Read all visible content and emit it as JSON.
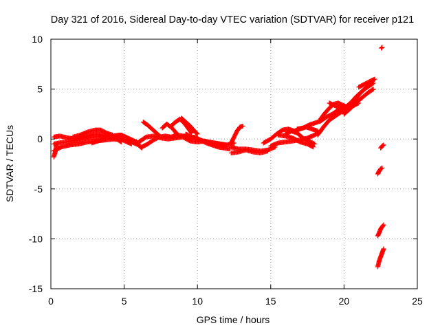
{
  "chart_data": {
    "type": "scatter",
    "title": "Day 321 of 2016, Sidereal Day-to-day VTEC variation (SDTVAR) for receiver p121",
    "xlabel": "GPS time / hours",
    "ylabel": "SDTVAR / TECUs",
    "xlim": [
      0,
      25
    ],
    "ylim": [
      -15,
      10
    ],
    "x_ticks": [
      0,
      5,
      10,
      15,
      20,
      25
    ],
    "y_ticks": [
      -15,
      -10,
      -5,
      0,
      5,
      10
    ],
    "x_tick_labels": [
      "0",
      "5",
      "10",
      "15",
      "20",
      "25"
    ],
    "y_tick_labels": [
      "-15",
      "-10",
      "-5",
      "0",
      "5",
      "10"
    ],
    "grid": true,
    "marker": "+",
    "color": "#ff0000",
    "series": [
      {
        "name": "SDTVAR",
        "tracks": [
          {
            "x": [
              0.2,
              0.5,
              1.0,
              1.5,
              2.0,
              2.5,
              3.0,
              3.5,
              4.0,
              4.5,
              5.0,
              5.5,
              6.0
            ],
            "y": [
              -0.5,
              -0.4,
              -0.3,
              -0.2,
              -0.1,
              0.1,
              0.2,
              0.2,
              0.1,
              0.0,
              0.1,
              -0.3,
              -0.6
            ]
          },
          {
            "x": [
              0.2,
              0.6,
              1.2,
              1.8,
              2.4,
              3.0,
              3.6,
              4.2,
              4.8,
              5.4,
              6.0
            ],
            "y": [
              0.2,
              0.3,
              0.1,
              0.0,
              0.3,
              0.5,
              0.4,
              0.3,
              0.4,
              0.0,
              -0.4
            ]
          },
          {
            "x": [
              0.2,
              0.7,
              1.3,
              1.9,
              2.5,
              3.1,
              3.7,
              4.3,
              4.9,
              5.5
            ],
            "y": [
              -1.2,
              -0.8,
              -0.6,
              -0.5,
              -0.3,
              -0.2,
              -0.1,
              0.0,
              -0.1,
              -0.5
            ]
          },
          {
            "x": [
              0.2,
              0.3,
              0.4
            ],
            "y": [
              -1.8,
              -1.3,
              -0.6
            ]
          },
          {
            "x": [
              1.5,
              2.0,
              2.5,
              3.0,
              3.4,
              3.8,
              4.2
            ],
            "y": [
              0.2,
              0.4,
              0.7,
              0.9,
              0.9,
              0.6,
              0.4
            ]
          },
          {
            "x": [
              2.8,
              3.2,
              3.6,
              4.0,
              4.4,
              4.8
            ],
            "y": [
              -0.4,
              -0.2,
              0.0,
              0.2,
              0.1,
              -0.3
            ]
          },
          {
            "x": [
              4.3,
              4.7,
              5.1,
              5.5,
              5.9,
              6.2
            ],
            "y": [
              0.3,
              0.4,
              0.2,
              -0.2,
              -0.5,
              -0.9
            ]
          },
          {
            "x": [
              6.0,
              6.5,
              7.0,
              7.5,
              8.0,
              8.5,
              9.0,
              9.5,
              10.0,
              10.5,
              11.0,
              11.5,
              12.0,
              12.5
            ],
            "y": [
              -0.3,
              0.2,
              0.3,
              0.1,
              0.0,
              0.1,
              0.2,
              -0.2,
              -0.3,
              -0.2,
              -0.4,
              -0.5,
              -0.6,
              -0.4
            ]
          },
          {
            "x": [
              6.2,
              6.6,
              7.0,
              7.4,
              7.8,
              8.2,
              8.6,
              9.0,
              9.4,
              9.8,
              10.2,
              10.6,
              11.0,
              11.4,
              11.8,
              12.2
            ],
            "y": [
              -0.8,
              -0.5,
              -0.1,
              0.2,
              0.3,
              0.2,
              0.4,
              0.3,
              0.1,
              0.2,
              -0.1,
              -0.4,
              -0.6,
              -0.8,
              -0.9,
              -1.0
            ]
          },
          {
            "x": [
              6.3,
              6.6,
              6.9,
              7.2,
              7.5
            ],
            "y": [
              1.7,
              1.4,
              1.0,
              0.6,
              0.2
            ]
          },
          {
            "x": [
              7.6,
              7.9,
              8.2,
              8.5,
              8.7
            ],
            "y": [
              1.1,
              1.5,
              1.2,
              0.7,
              0.3
            ]
          },
          {
            "x": [
              8.2,
              8.5,
              8.8,
              9.1,
              9.4,
              9.6
            ],
            "y": [
              1.3,
              1.7,
              2.0,
              1.6,
              1.0,
              0.6
            ]
          },
          {
            "x": [
              8.9,
              9.2,
              9.5,
              9.8,
              10.0
            ],
            "y": [
              2.1,
              1.7,
              1.3,
              0.8,
              0.5
            ]
          },
          {
            "x": [
              9.2,
              9.6,
              10.0,
              10.4,
              10.8,
              11.2,
              11.6,
              12.0
            ],
            "y": [
              0.5,
              0.2,
              0.0,
              -0.2,
              -0.3,
              -0.4,
              -0.5,
              -0.6
            ]
          },
          {
            "x": [
              12.3,
              12.8,
              13.3,
              13.8,
              14.3,
              14.8,
              15.3
            ],
            "y": [
              -0.8,
              -1.0,
              -1.0,
              -1.1,
              -1.2,
              -1.1,
              -0.8
            ]
          },
          {
            "x": [
              12.3,
              12.8,
              13.3,
              13.8,
              14.3,
              14.8
            ],
            "y": [
              -1.4,
              -1.3,
              -1.1,
              -1.3,
              -1.4,
              -1.2
            ]
          },
          {
            "x": [
              12.3,
              12.5,
              12.7,
              12.9,
              13.1
            ],
            "y": [
              -0.4,
              0.2,
              0.8,
              1.2,
              1.3
            ]
          },
          {
            "x": [
              14.5,
              15.0,
              15.4,
              15.8,
              16.2,
              16.6,
              17.0,
              17.4,
              17.8,
              18.2
            ],
            "y": [
              -0.4,
              0.0,
              0.5,
              0.9,
              1.0,
              0.8,
              1.0,
              1.2,
              1.0,
              0.8
            ]
          },
          {
            "x": [
              15.0,
              15.5,
              16.0,
              16.5,
              17.0,
              17.5,
              18.0,
              18.4
            ],
            "y": [
              -0.7,
              -0.4,
              -0.3,
              -0.2,
              -0.1,
              0.1,
              0.4,
              0.8
            ]
          },
          {
            "x": [
              15.5,
              16.0,
              16.5,
              17.0,
              17.5,
              17.9
            ],
            "y": [
              0.4,
              0.3,
              0.1,
              -0.3,
              -0.5,
              -0.8
            ]
          },
          {
            "x": [
              16.0,
              16.4,
              16.8,
              17.2,
              17.6,
              18.0
            ],
            "y": [
              0.5,
              0.8,
              0.6,
              0.1,
              -0.2,
              -0.5
            ]
          },
          {
            "x": [
              16.8,
              17.2,
              17.6,
              18.0,
              18.4,
              18.8,
              19.2,
              19.6,
              20.0
            ],
            "y": [
              1.0,
              1.1,
              1.4,
              1.6,
              1.8,
              2.2,
              2.5,
              2.9,
              3.2
            ]
          },
          {
            "x": [
              18.2,
              18.6,
              19.0,
              19.4,
              19.8,
              20.2,
              20.6,
              21.0
            ],
            "y": [
              0.4,
              1.2,
              1.9,
              2.3,
              2.7,
              3.0,
              3.3,
              3.6
            ]
          },
          {
            "x": [
              18.4,
              18.7,
              19.0,
              19.3,
              19.6,
              19.9,
              20.2,
              20.5,
              20.8,
              21.1,
              21.4,
              21.7,
              22.0
            ],
            "y": [
              2.0,
              2.6,
              3.1,
              3.5,
              3.6,
              3.4,
              3.2,
              3.5,
              4.0,
              4.6,
              5.0,
              5.3,
              5.6
            ]
          },
          {
            "x": [
              19.0,
              19.3,
              19.6,
              19.9,
              20.2,
              20.5,
              20.8,
              21.1,
              21.4,
              21.7,
              22.0
            ],
            "y": [
              3.6,
              3.4,
              3.2,
              3.1,
              3.3,
              3.7,
              4.2,
              4.6,
              5.0,
              5.4,
              5.9
            ]
          },
          {
            "x": [
              20.0,
              20.4,
              20.8,
              21.2,
              21.6,
              22.0
            ],
            "y": [
              2.5,
              3.0,
              3.6,
              4.1,
              4.6,
              5.0
            ]
          },
          {
            "x": [
              21.0,
              21.4,
              21.8,
              22.1
            ],
            "y": [
              5.2,
              5.5,
              5.8,
              6.0
            ]
          },
          {
            "x": [
              22.5,
              22.6,
              22.7
            ],
            "y": [
              -0.9,
              -0.7,
              -0.6
            ]
          },
          {
            "x": [
              22.3,
              22.4,
              22.5,
              22.6
            ],
            "y": [
              -3.5,
              -3.2,
              -3.0,
              -2.9
            ]
          },
          {
            "x": [
              22.3,
              22.4,
              22.5,
              22.6,
              22.7
            ],
            "y": [
              -9.7,
              -9.4,
              -9.0,
              -8.8,
              -8.6
            ]
          },
          {
            "x": [
              22.3,
              22.4,
              22.5,
              22.6,
              22.7
            ],
            "y": [
              -12.8,
              -12.2,
              -11.8,
              -11.4,
              -11.0
            ]
          },
          {
            "x": [
              22.55,
              22.6
            ],
            "y": [
              9.1,
              9.2
            ]
          }
        ]
      }
    ]
  }
}
